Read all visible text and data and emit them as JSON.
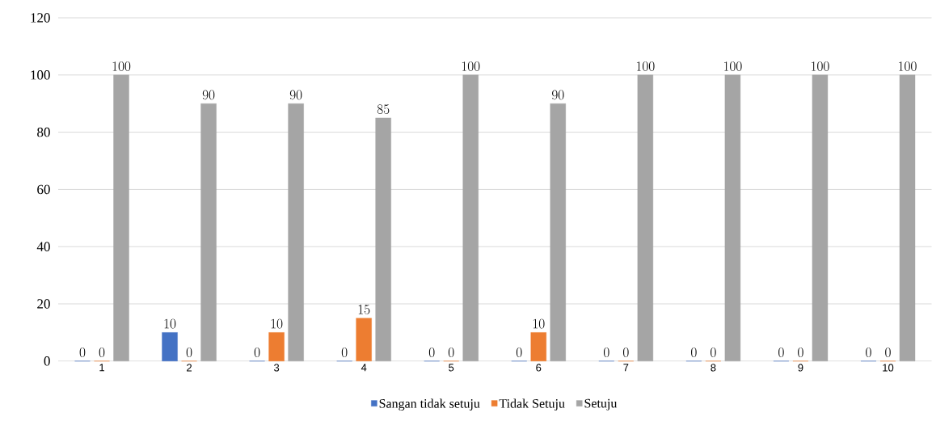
{
  "chart_data": {
    "type": "bar",
    "categories": [
      "1",
      "2",
      "3",
      "4",
      "5",
      "6",
      "7",
      "8",
      "9",
      "10"
    ],
    "series": [
      {
        "name": "Sangan tidak setuju",
        "color": "#4472c4",
        "values": [
          0,
          10,
          0,
          0,
          0,
          0,
          0,
          0,
          0,
          0
        ]
      },
      {
        "name": "Tidak Setuju",
        "color": "#ed7d31",
        "values": [
          0,
          0,
          10,
          15,
          0,
          10,
          0,
          0,
          0,
          0
        ]
      },
      {
        "name": "Setuju",
        "color": "#a5a5a5",
        "values": [
          100,
          90,
          90,
          85,
          100,
          90,
          100,
          100,
          100,
          100
        ]
      }
    ],
    "ylim": [
      0,
      120
    ],
    "yticks": [
      0,
      20,
      40,
      60,
      80,
      100,
      120
    ],
    "grid": "y",
    "legend": "bottom",
    "data_labels": true
  }
}
